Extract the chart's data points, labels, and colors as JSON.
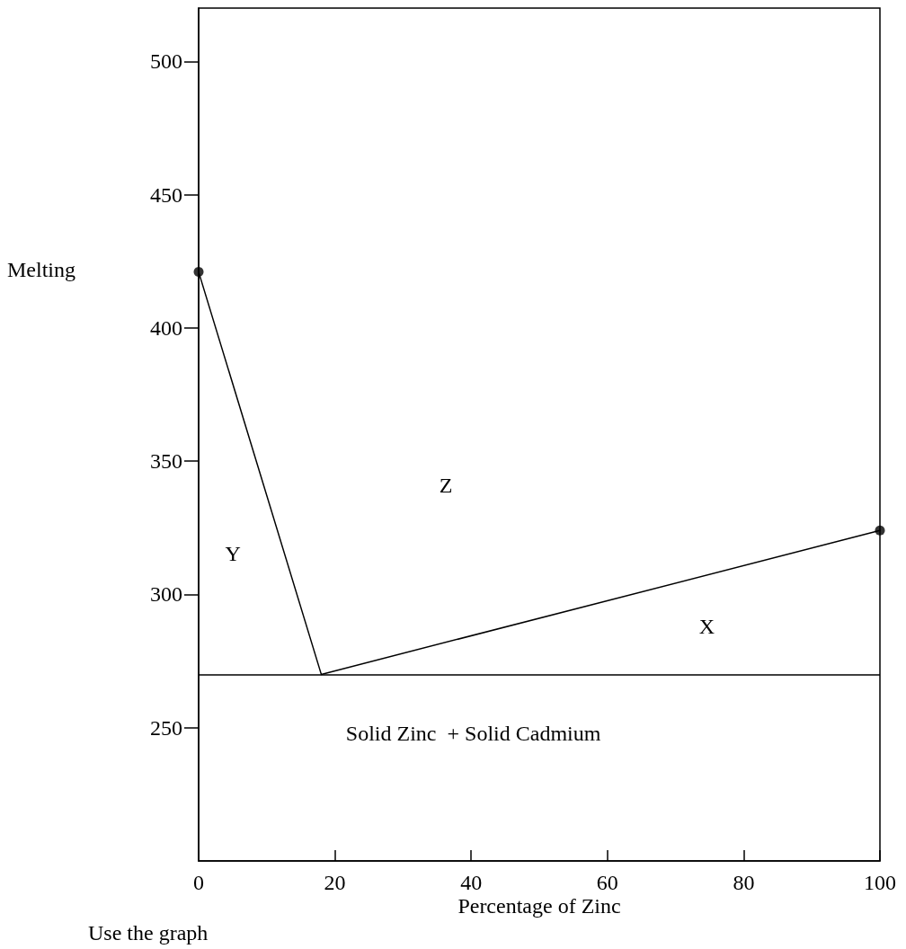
{
  "chart_data": {
    "type": "line",
    "xlabel": "Percentage of Zinc",
    "ylabel": "Melting",
    "xlim": [
      0,
      100
    ],
    "xticks": [
      0,
      20,
      40,
      60,
      80,
      100
    ],
    "ylim": [
      200,
      520
    ],
    "yticks": [
      250,
      300,
      350,
      400,
      450,
      500
    ],
    "grid": false,
    "series": [
      {
        "color": "#000000",
        "x": [
          0,
          18,
          100
        ],
        "values": [
          421,
          270,
          324
        ],
        "marker": "none",
        "line_style": "solid"
      },
      {
        "type": "scatter",
        "color": "#000000",
        "x": [
          0,
          100
        ],
        "values": [
          421,
          324
        ],
        "marker": "circle"
      }
    ],
    "ref_lines": [
      {
        "axis": "y",
        "value": 270,
        "color": "#000000",
        "line_style": "solid"
      }
    ],
    "annotations": [
      "Y",
      "Z",
      "X",
      "Solid Zinc  + Solid Cadmium",
      "Use the graph"
    ]
  }
}
